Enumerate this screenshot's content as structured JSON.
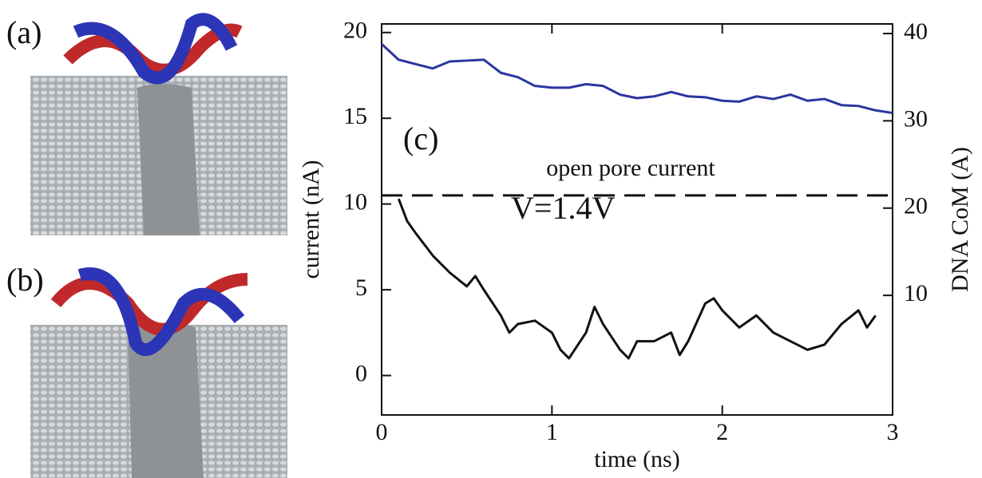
{
  "panels": [
    {
      "label": "(a)"
    },
    {
      "label": "(b)"
    }
  ],
  "chart_data": {
    "type": "line",
    "panel_label": "(c)",
    "x_label": "time (ns)",
    "y_label": "current (nA)",
    "y2_label": "DNA CoM (A)",
    "xlim": [
      0,
      3
    ],
    "xticks": [
      0,
      1,
      2,
      3
    ],
    "ylim": [
      -2.3,
      20.5
    ],
    "yticks": [
      0,
      5,
      10,
      15,
      20
    ],
    "y2lim": [
      -3.7,
      41.1
    ],
    "y2ticks": [
      10,
      20,
      30,
      40
    ],
    "reference_line": {
      "value": 10.5,
      "label": "open pore current"
    },
    "annotation": "V=1.4V",
    "series": [
      {
        "color": "#111111",
        "x": [
          0.1,
          0.15,
          0.2,
          0.3,
          0.4,
          0.5,
          0.55,
          0.6,
          0.7,
          0.75,
          0.8,
          0.9,
          1.0,
          1.05,
          1.1,
          1.2,
          1.25,
          1.3,
          1.4,
          1.45,
          1.5,
          1.6,
          1.7,
          1.75,
          1.8,
          1.9,
          1.95,
          2.0,
          2.1,
          2.2,
          2.3,
          2.4,
          2.5,
          2.6,
          2.7,
          2.8,
          2.85,
          2.9
        ],
        "values": [
          10.3,
          9,
          8.3,
          7,
          6,
          5.2,
          5.8,
          5,
          3.5,
          2.5,
          3,
          3.2,
          2.5,
          1.5,
          1,
          2.5,
          4,
          3,
          1.5,
          1,
          2,
          2,
          2.5,
          1.2,
          2,
          4.2,
          4.5,
          3.8,
          2.8,
          3.5,
          2.5,
          2,
          1.5,
          1.8,
          3,
          3.8,
          2.8,
          3.5
        ]
      },
      {
        "color": "#2b35a0",
        "axis": "y2",
        "x": [
          0,
          0.1,
          0.2,
          0.3,
          0.4,
          0.5,
          0.6,
          0.7,
          0.8,
          0.9,
          1.0,
          1.1,
          1.2,
          1.3,
          1.4,
          1.5,
          1.6,
          1.7,
          1.8,
          1.9,
          2.0,
          2.1,
          2.2,
          2.3,
          2.4,
          2.5,
          2.6,
          2.7,
          2.8,
          2.9,
          3.0
        ],
        "values": [
          38.8,
          37,
          36.5,
          36,
          36.8,
          36.9,
          37,
          35.5,
          35,
          34,
          33.8,
          33.8,
          34.2,
          34,
          33,
          32.6,
          32.8,
          33.3,
          32.8,
          32.7,
          32.3,
          32.2,
          32.8,
          32.5,
          33,
          32.3,
          32.5,
          31.8,
          31.7,
          31.2,
          30.9
        ]
      }
    ]
  }
}
